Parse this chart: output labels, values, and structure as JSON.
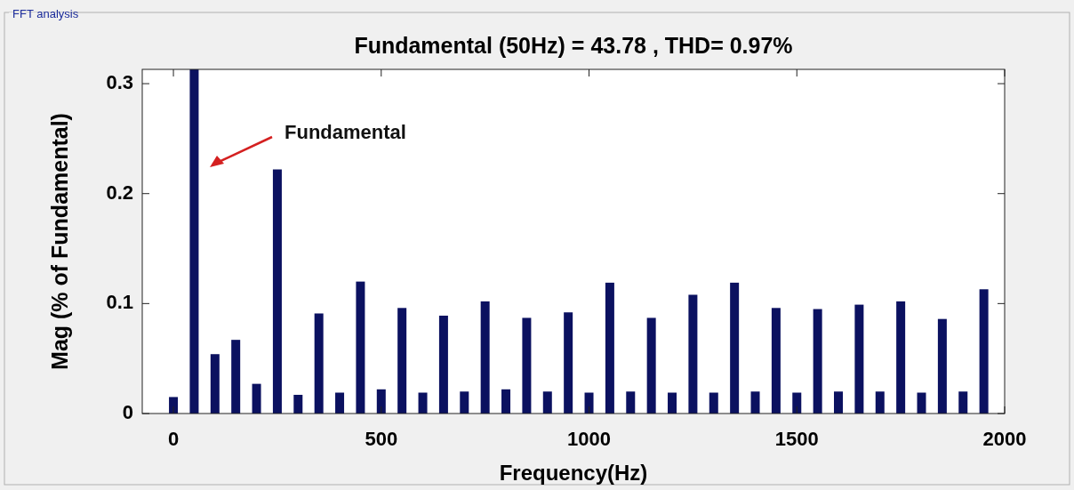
{
  "chart_data": {
    "type": "bar",
    "title": "Fundamental (50Hz) = 43.78 , THD= 0.97%",
    "xlabel": "Frequency(Hz)",
    "ylabel": "Mag (% of Fundamental)",
    "x": [
      0,
      50,
      100,
      150,
      200,
      250,
      300,
      350,
      400,
      450,
      500,
      550,
      600,
      650,
      700,
      750,
      800,
      850,
      900,
      950,
      1000,
      1050,
      1100,
      1150,
      1200,
      1250,
      1300,
      1350,
      1400,
      1450,
      1500,
      1550,
      1600,
      1650,
      1700,
      1750,
      1800,
      1850,
      1900,
      1950
    ],
    "values": [
      0.015,
      0.313,
      0.054,
      0.067,
      0.027,
      0.222,
      0.017,
      0.091,
      0.019,
      0.12,
      0.022,
      0.096,
      0.019,
      0.089,
      0.02,
      0.102,
      0.022,
      0.087,
      0.02,
      0.092,
      0.019,
      0.119,
      0.02,
      0.087,
      0.019,
      0.108,
      0.019,
      0.119,
      0.02,
      0.096,
      0.019,
      0.095,
      0.02,
      0.099,
      0.02,
      0.102,
      0.019,
      0.086,
      0.02,
      0.113
    ],
    "color": "#0b1160",
    "xlim": [
      -75,
      2000
    ],
    "ylim": [
      0,
      0.313
    ],
    "xticks": [
      0,
      500,
      1000,
      1500,
      2000
    ],
    "yticks": [
      0,
      0.1,
      0.2,
      0.3
    ],
    "grid": false,
    "annotations": [
      "FFT analysis",
      "Fundamental"
    ]
  }
}
